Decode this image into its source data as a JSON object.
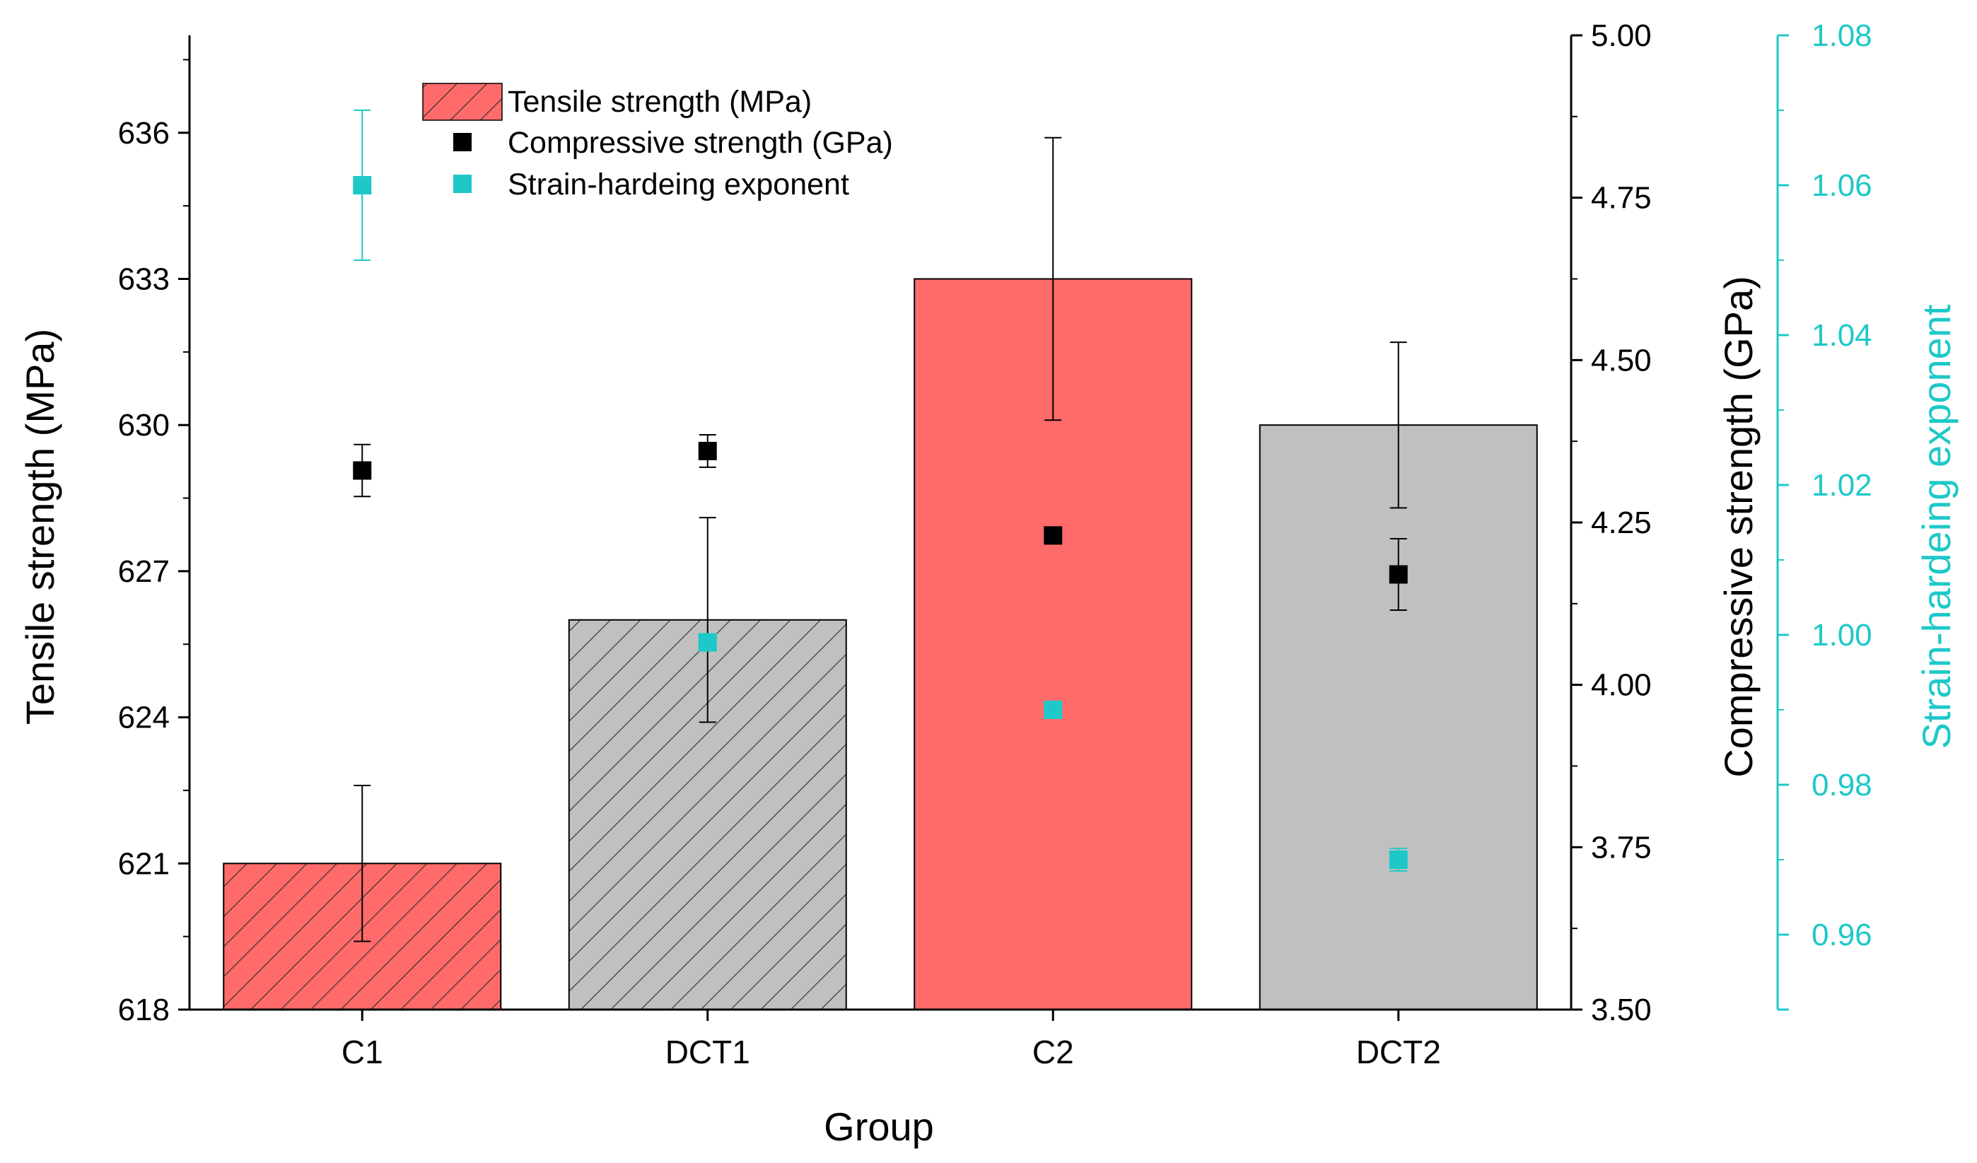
{
  "chart_data": {
    "type": "bar",
    "xlabel": "Group",
    "categories": [
      "C1",
      "DCT1",
      "C2",
      "DCT2"
    ],
    "bar_series": {
      "name": "Tensile strength (MPa)",
      "axis_label": "Tensile strength (MPa)",
      "values": [
        621,
        626,
        633,
        630
      ],
      "errors": [
        1.6,
        2.1,
        2.9,
        1.7
      ],
      "fills": [
        "#ff6b6b",
        "#c0c0c0",
        "#ff6b6b",
        "#c0c0c0"
      ],
      "hatched": [
        true,
        true,
        false,
        false
      ],
      "ylim": [
        618,
        638
      ],
      "ticks": [
        618,
        621,
        624,
        627,
        630,
        633,
        636
      ],
      "tick_labels": [
        "618",
        "621",
        "624",
        "627",
        "630",
        "633",
        "636"
      ]
    },
    "compressive_series": {
      "name": "Compressive strength (GPa)",
      "axis_label": "Compressive strength (GPa)",
      "values": [
        4.33,
        4.36,
        4.23,
        4.17
      ],
      "errors": [
        0.04,
        0.025,
        0.0,
        0.055
      ],
      "color": "#000000",
      "ylim": [
        3.5,
        5.0
      ],
      "ticks": [
        3.5,
        3.75,
        4.0,
        4.25,
        4.5,
        4.75,
        5.0
      ],
      "tick_labels": [
        "3.50",
        "3.75",
        "4.00",
        "4.25",
        "4.50",
        "4.75",
        "5.00"
      ]
    },
    "strain_series": {
      "name": "Strain-hardeing exponent",
      "axis_label": "Strain-hardeing exponent",
      "values": [
        1.06,
        0.999,
        0.99,
        0.97
      ],
      "errors": [
        0.01,
        0.0,
        0.0,
        0.0015
      ],
      "color": "#1ec8c8",
      "ylim": [
        0.95,
        1.08
      ],
      "ticks": [
        0.96,
        0.98,
        1.0,
        1.02,
        1.04,
        1.06,
        1.08
      ],
      "tick_labels": [
        "0.96",
        "0.98",
        "1.00",
        "1.02",
        "1.04",
        "1.06",
        "1.08"
      ]
    },
    "legend": {
      "position": "top-left",
      "entries": [
        "Tensile strength (MPa)",
        "Compressive strength (GPa)",
        "Strain-hardeing exponent"
      ]
    }
  }
}
